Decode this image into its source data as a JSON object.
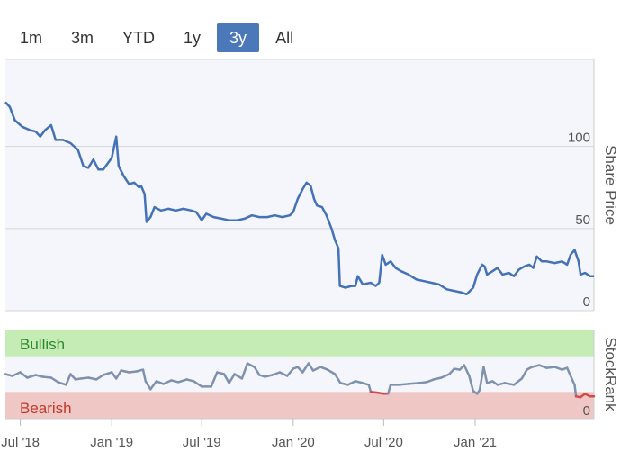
{
  "range_selector": {
    "buttons": [
      "1m",
      "3m",
      "YTD",
      "1y",
      "3y",
      "All"
    ],
    "active": "3y"
  },
  "colors": {
    "price_line": "#4472b8",
    "stockrank_line": "#7f92ad",
    "bearish_line": "#d04a4a",
    "bullish_zone": "#c6ecb6",
    "bearish_zone": "#efc7c4",
    "bullish_text": "#2c8a2c",
    "bearish_text": "#c0392b"
  },
  "chart_data": [
    {
      "type": "line",
      "name": "share-price",
      "ylabel": "Share Price",
      "yticks": [
        0,
        50,
        100
      ],
      "ylim": [
        0,
        153
      ],
      "series": [
        {
          "points": [
            [
              "2018-06-01",
              127
            ],
            [
              "2018-06-10",
              124
            ],
            [
              "2018-06-20",
              116
            ],
            [
              "2018-07-05",
              112
            ],
            [
              "2018-07-20",
              110
            ],
            [
              "2018-08-01",
              109
            ],
            [
              "2018-08-10",
              106
            ],
            [
              "2018-08-20",
              110
            ],
            [
              "2018-09-01",
              113
            ],
            [
              "2018-09-10",
              104
            ],
            [
              "2018-09-25",
              104
            ],
            [
              "2018-10-10",
              102
            ],
            [
              "2018-10-25",
              98
            ],
            [
              "2018-11-05",
              88
            ],
            [
              "2018-11-15",
              87
            ],
            [
              "2018-11-25",
              92
            ],
            [
              "2018-12-05",
              86
            ],
            [
              "2018-12-15",
              86
            ],
            [
              "2019-01-01",
              93
            ],
            [
              "2019-01-10",
              106
            ],
            [
              "2019-01-15",
              88
            ],
            [
              "2019-01-25",
              82
            ],
            [
              "2019-02-05",
              77
            ],
            [
              "2019-02-15",
              78
            ],
            [
              "2019-02-25",
              75
            ],
            [
              "2019-03-01",
              76
            ],
            [
              "2019-03-08",
              71
            ],
            [
              "2019-03-12",
              54
            ],
            [
              "2019-03-20",
              57
            ],
            [
              "2019-03-28",
              63
            ],
            [
              "2019-04-10",
              61
            ],
            [
              "2019-04-25",
              62
            ],
            [
              "2019-05-10",
              61
            ],
            [
              "2019-05-25",
              62
            ],
            [
              "2019-06-10",
              61
            ],
            [
              "2019-06-20",
              60
            ],
            [
              "2019-07-01",
              55
            ],
            [
              "2019-07-10",
              59
            ],
            [
              "2019-07-25",
              57
            ],
            [
              "2019-08-10",
              56
            ],
            [
              "2019-08-25",
              55
            ],
            [
              "2019-09-10",
              55
            ],
            [
              "2019-09-25",
              56
            ],
            [
              "2019-10-10",
              58
            ],
            [
              "2019-10-25",
              57
            ],
            [
              "2019-11-10",
              57
            ],
            [
              "2019-11-25",
              58
            ],
            [
              "2019-12-10",
              57
            ],
            [
              "2019-12-25",
              58
            ],
            [
              "2020-01-01",
              60
            ],
            [
              "2020-01-10",
              68
            ],
            [
              "2020-01-20",
              74
            ],
            [
              "2020-01-28",
              78
            ],
            [
              "2020-02-05",
              76
            ],
            [
              "2020-02-12",
              68
            ],
            [
              "2020-02-18",
              64
            ],
            [
              "2020-02-28",
              63
            ],
            [
              "2020-03-08",
              58
            ],
            [
              "2020-03-18",
              50
            ],
            [
              "2020-03-25",
              43
            ],
            [
              "2020-04-01",
              38
            ],
            [
              "2020-04-04",
              15
            ],
            [
              "2020-04-15",
              14
            ],
            [
              "2020-04-28",
              15
            ],
            [
              "2020-05-05",
              15
            ],
            [
              "2020-05-10",
              21
            ],
            [
              "2020-05-20",
              16
            ],
            [
              "2020-06-05",
              17
            ],
            [
              "2020-06-15",
              15
            ],
            [
              "2020-06-22",
              17
            ],
            [
              "2020-06-28",
              34
            ],
            [
              "2020-07-05",
              28
            ],
            [
              "2020-07-15",
              30
            ],
            [
              "2020-07-25",
              26
            ],
            [
              "2020-08-05",
              24
            ],
            [
              "2020-08-20",
              22
            ],
            [
              "2020-09-05",
              19
            ],
            [
              "2020-09-20",
              18
            ],
            [
              "2020-10-05",
              17
            ],
            [
              "2020-10-20",
              16
            ],
            [
              "2020-11-05",
              13
            ],
            [
              "2020-11-20",
              12
            ],
            [
              "2020-12-05",
              11
            ],
            [
              "2020-12-15",
              10
            ],
            [
              "2020-12-28",
              14
            ],
            [
              "2021-01-05",
              22
            ],
            [
              "2021-01-15",
              28
            ],
            [
              "2021-01-20",
              27
            ],
            [
              "2021-01-25",
              22
            ],
            [
              "2021-02-05",
              24
            ],
            [
              "2021-02-15",
              26
            ],
            [
              "2021-02-25",
              22
            ],
            [
              "2021-03-10",
              23
            ],
            [
              "2021-03-20",
              21
            ],
            [
              "2021-03-30",
              25
            ],
            [
              "2021-04-10",
              27
            ],
            [
              "2021-04-20",
              28
            ],
            [
              "2021-04-28",
              26
            ],
            [
              "2021-05-05",
              33
            ],
            [
              "2021-05-15",
              30
            ],
            [
              "2021-05-25",
              30
            ],
            [
              "2021-06-10",
              29
            ],
            [
              "2021-06-25",
              30
            ],
            [
              "2021-07-05",
              28
            ],
            [
              "2021-07-12",
              34
            ],
            [
              "2021-07-20",
              37
            ],
            [
              "2021-07-28",
              30
            ],
            [
              "2021-08-01",
              22
            ],
            [
              "2021-08-10",
              23
            ],
            [
              "2021-08-20",
              21
            ],
            [
              "2021-08-28",
              21
            ]
          ]
        }
      ]
    },
    {
      "type": "line",
      "name": "stockrank",
      "ylabel": "StockRank",
      "yticks": [
        0
      ],
      "ylim": [
        0,
        100
      ],
      "zones": [
        {
          "label": "Bullish",
          "from": 70,
          "to": 100
        },
        {
          "label": "Bearish",
          "from": 0,
          "to": 30
        }
      ],
      "series": [
        {
          "points": [
            [
              "2018-06-01",
              50
            ],
            [
              "2018-06-15",
              48
            ],
            [
              "2018-07-01",
              52
            ],
            [
              "2018-07-15",
              46
            ],
            [
              "2018-08-01",
              49
            ],
            [
              "2018-08-15",
              47
            ],
            [
              "2018-09-01",
              46
            ],
            [
              "2018-09-15",
              41
            ],
            [
              "2018-10-01",
              38
            ],
            [
              "2018-10-10",
              50
            ],
            [
              "2018-10-20",
              44
            ],
            [
              "2018-11-01",
              45
            ],
            [
              "2018-11-15",
              46
            ],
            [
              "2018-12-01",
              44
            ],
            [
              "2018-12-15",
              49
            ],
            [
              "2019-01-01",
              52
            ],
            [
              "2019-01-10",
              45
            ],
            [
              "2019-01-20",
              54
            ],
            [
              "2019-02-05",
              52
            ],
            [
              "2019-02-20",
              53
            ],
            [
              "2019-03-05",
              55
            ],
            [
              "2019-03-10",
              42
            ],
            [
              "2019-03-20",
              33
            ],
            [
              "2019-04-01",
              42
            ],
            [
              "2019-04-15",
              39
            ],
            [
              "2019-05-01",
              43
            ],
            [
              "2019-05-15",
              41
            ],
            [
              "2019-06-01",
              44
            ],
            [
              "2019-06-15",
              42
            ],
            [
              "2019-07-01",
              36
            ],
            [
              "2019-07-20",
              36
            ],
            [
              "2019-08-01",
              52
            ],
            [
              "2019-08-15",
              50
            ],
            [
              "2019-08-25",
              40
            ],
            [
              "2019-09-05",
              50
            ],
            [
              "2019-09-20",
              45
            ],
            [
              "2019-10-01",
              62
            ],
            [
              "2019-10-15",
              58
            ],
            [
              "2019-10-25",
              49
            ],
            [
              "2019-11-05",
              47
            ],
            [
              "2019-11-20",
              49
            ],
            [
              "2019-12-05",
              52
            ],
            [
              "2019-12-20",
              48
            ],
            [
              "2020-01-01",
              56
            ],
            [
              "2020-01-10",
              58
            ],
            [
              "2020-01-20",
              52
            ],
            [
              "2020-02-01",
              62
            ],
            [
              "2020-02-10",
              54
            ],
            [
              "2020-02-25",
              58
            ],
            [
              "2020-03-10",
              55
            ],
            [
              "2020-03-25",
              50
            ],
            [
              "2020-04-05",
              40
            ],
            [
              "2020-04-20",
              38
            ],
            [
              "2020-05-05",
              42
            ],
            [
              "2020-05-20",
              40
            ],
            [
              "2020-06-01",
              38
            ],
            [
              "2020-06-05",
              30
            ],
            [
              "2020-06-20",
              29
            ],
            [
              "2020-07-01",
              28
            ],
            [
              "2020-07-10",
              28
            ],
            [
              "2020-07-15",
              38
            ],
            [
              "2020-08-01",
              38
            ],
            [
              "2020-08-20",
              39
            ],
            [
              "2020-09-10",
              40
            ],
            [
              "2020-09-25",
              41
            ],
            [
              "2020-10-10",
              44
            ],
            [
              "2020-10-25",
              46
            ],
            [
              "2020-11-10",
              50
            ],
            [
              "2020-11-20",
              56
            ],
            [
              "2020-12-01",
              55
            ],
            [
              "2020-12-10",
              60
            ],
            [
              "2020-12-20",
              48
            ],
            [
              "2020-12-28",
              31
            ],
            [
              "2021-01-05",
              28
            ],
            [
              "2021-01-10",
              32
            ],
            [
              "2021-01-18",
              58
            ],
            [
              "2021-01-25",
              40
            ],
            [
              "2021-02-05",
              42
            ],
            [
              "2021-02-15",
              38
            ],
            [
              "2021-03-01",
              40
            ],
            [
              "2021-03-20",
              38
            ],
            [
              "2021-04-05",
              45
            ],
            [
              "2021-04-15",
              55
            ],
            [
              "2021-04-25",
              58
            ],
            [
              "2021-05-10",
              60
            ],
            [
              "2021-05-25",
              57
            ],
            [
              "2021-06-10",
              58
            ],
            [
              "2021-06-25",
              55
            ],
            [
              "2021-07-05",
              57
            ],
            [
              "2021-07-15",
              44
            ],
            [
              "2021-07-20",
              38
            ],
            [
              "2021-07-23",
              25
            ],
            [
              "2021-08-01",
              24
            ],
            [
              "2021-08-10",
              28
            ],
            [
              "2021-08-20",
              25
            ],
            [
              "2021-08-28",
              25
            ]
          ]
        }
      ]
    }
  ],
  "x_axis": {
    "start": "2018-06-01",
    "end": "2021-08-28",
    "ticks": [
      {
        "date": "2018-07-01",
        "label": "Jul '18"
      },
      {
        "date": "2019-01-01",
        "label": "Jan '19"
      },
      {
        "date": "2019-07-01",
        "label": "Jul '19"
      },
      {
        "date": "2020-01-01",
        "label": "Jan '20"
      },
      {
        "date": "2020-07-01",
        "label": "Jul '20"
      },
      {
        "date": "2021-01-01",
        "label": "Jan '21"
      }
    ]
  }
}
